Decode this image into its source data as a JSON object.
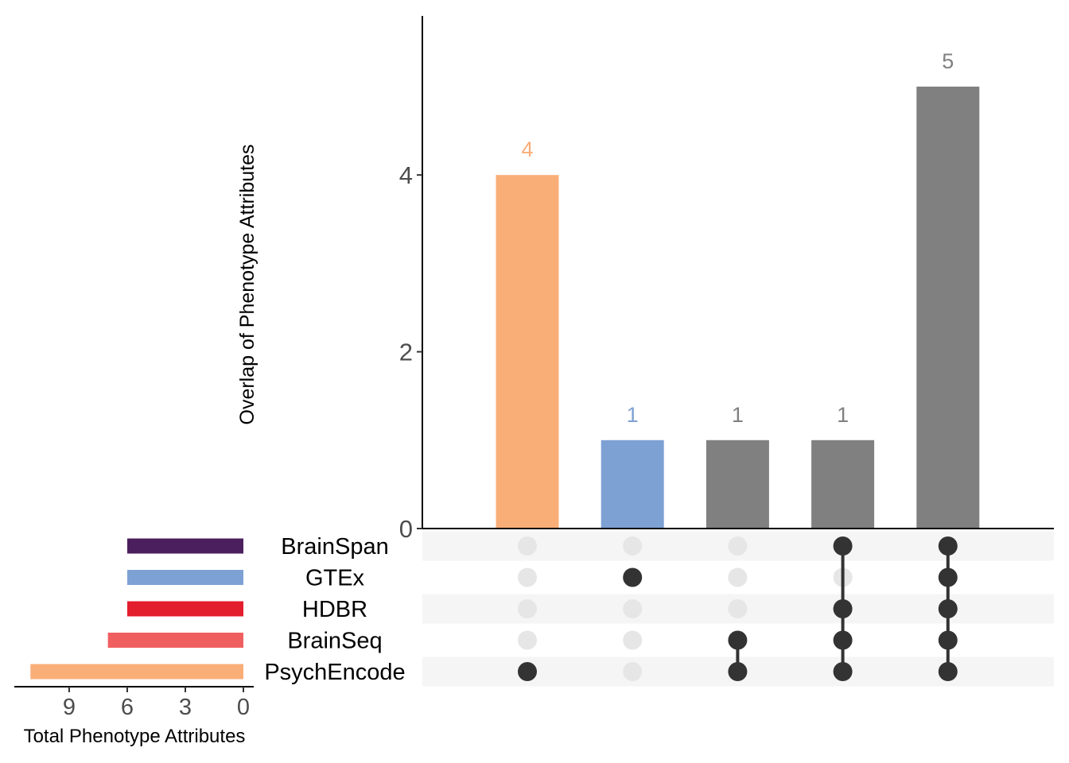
{
  "chart_data": {
    "type": "bar",
    "chart_kind": "upset",
    "ylabel": "Overlap of Phenotype Attributes",
    "ylim": [
      0,
      5.8
    ],
    "y_ticks": [
      0,
      2,
      4
    ],
    "intersections": [
      {
        "value": 4,
        "sets": [
          "PsychEncode"
        ],
        "color": "#F9AE78",
        "label": "4"
      },
      {
        "value": 1,
        "sets": [
          "GTEx"
        ],
        "color": "#7EA1D4",
        "label": "1"
      },
      {
        "value": 1,
        "sets": [
          "BrainSeq",
          "PsychEncode"
        ],
        "color": "#808080",
        "label": "1"
      },
      {
        "value": 1,
        "sets": [
          "BrainSpan",
          "HDBR",
          "BrainSeq",
          "PsychEncode"
        ],
        "color": "#808080",
        "label": "1"
      },
      {
        "value": 5,
        "sets": [
          "BrainSpan",
          "GTEx",
          "HDBR",
          "BrainSeq",
          "PsychEncode"
        ],
        "color": "#808080",
        "label": "5"
      }
    ],
    "set_sizes": {
      "xlabel": "Total Phenotype Attributes",
      "xlim": [
        11.3,
        0
      ],
      "x_ticks": [
        9,
        6,
        3,
        0
      ],
      "sets": [
        {
          "name": "BrainSpan",
          "value": 6,
          "color": "#4B1F5E"
        },
        {
          "name": "GTEx",
          "value": 6,
          "color": "#7EA1D4"
        },
        {
          "name": "HDBR",
          "value": 6,
          "color": "#E31E2D"
        },
        {
          "name": "BrainSeq",
          "value": 7,
          "color": "#F05F60"
        },
        {
          "name": "PsychEncode",
          "value": 11,
          "color": "#F9AE78"
        }
      ]
    },
    "dot_active_color": "#333333",
    "dot_inactive_color": "#E6E6E6",
    "row_stripe_color": "#F5F5F5",
    "axis_text_color": "#4D4D4D",
    "grid": false
  }
}
